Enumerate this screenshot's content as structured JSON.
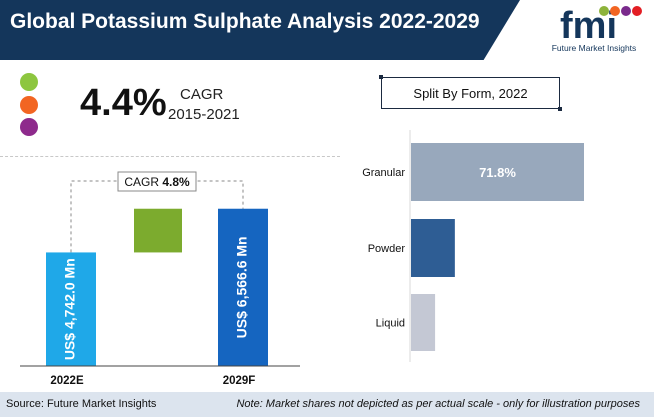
{
  "header": {
    "title": "Global Potassium Sulphate Analysis 2022-2029"
  },
  "logo": {
    "letters": "fmi",
    "tagline": "Future Market Insights",
    "colors": [
      "#8db33b",
      "#f26522",
      "#7a2a8c",
      "#e31e24"
    ]
  },
  "kpi": {
    "cagr_value": "4.4%",
    "cagr_label": "CAGR",
    "cagr_years": "2015-2021"
  },
  "dots": [
    {
      "color": "#8dc63f"
    },
    {
      "color": "#f26522"
    },
    {
      "color": "#8e2a8c"
    }
  ],
  "split": {
    "title": "Split By Form,",
    "year": "2022"
  },
  "footer": {
    "source": "Source: Future Market Insights",
    "note": "Note: Market shares not depicted as per actual scale - only for illustration purposes"
  },
  "chart_data": [
    {
      "type": "bar",
      "categories": [
        "2022E",
        "2029F"
      ],
      "values": [
        4742.0,
        6566.6
      ],
      "value_labels": [
        "US$ 4,742.0 Mn",
        "US$ 6,566.6 Mn"
      ],
      "cagr_label": "CAGR",
      "cagr_value": "4.8%",
      "colors": {
        "start": "#1fa8e8",
        "end": "#1565c0",
        "growth": "#7cab2e"
      }
    },
    {
      "type": "bar",
      "orientation": "horizontal",
      "categories": [
        "Granular",
        "Powder",
        "Liquid"
      ],
      "values": [
        71.8,
        18.2,
        10.0
      ],
      "value_labels": [
        "71.8%",
        "",
        ""
      ],
      "colors": [
        "#98a8bc",
        "#2e5d94",
        "#c4c8d4"
      ]
    }
  ]
}
